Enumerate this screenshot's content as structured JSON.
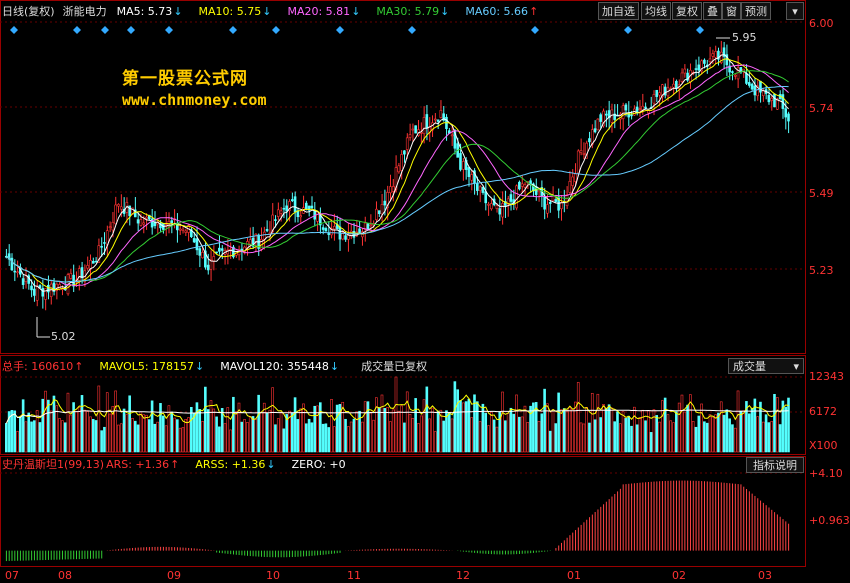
{
  "main_legend": {
    "period": "日线(复权)",
    "stock_name": "浙能电力",
    "ma5": "MA5: 5.73",
    "ma10": "MA10: 5.75",
    "ma20": "MA20: 5.81",
    "ma30": "MA30: 5.79",
    "ma60": "MA60: 5.66"
  },
  "toolbar": {
    "add_watch": "加自选",
    "ma_line": "均线",
    "adjust": "复权",
    "overlay": "叠",
    "window": "窗",
    "forecast": "预测",
    "menu_icon": "chevron-down-icon"
  },
  "watermark": {
    "line1": "第一股票公式网",
    "line2": "www.chnmoney.com"
  },
  "price_axis": [
    "6.00",
    "5.74",
    "5.49",
    "5.23"
  ],
  "price_marks": {
    "high": "5.95",
    "low": "5.02"
  },
  "volume_legend": {
    "total": "总手: 160610",
    "mavol5": "MAVOL5: 178157",
    "mavol120": "MAVOL120: 355448",
    "note": "成交量已复权",
    "dropdown": "成交量"
  },
  "volume_axis": [
    "12343",
    "6172",
    "X100"
  ],
  "indicator_legend": {
    "name": "史丹温斯坦1(99,13)",
    "ars": "ARS: +1.36",
    "arss": "ARSS: +1.36",
    "zero": "ZERO: +0",
    "help": "指标说明"
  },
  "indicator_axis": [
    "+4.10",
    "+0.963"
  ],
  "date_axis": [
    "07",
    "08",
    "09",
    "10",
    "11",
    "12",
    "01",
    "02",
    "03"
  ],
  "colors": {
    "up": "#ff3333",
    "down": "#55ffff",
    "ma5": "#ffffff",
    "ma10": "#ffff00",
    "ma20": "#ff66ff",
    "ma30": "#33cc33",
    "ma60": "#66ccff",
    "grid": "#990000",
    "ind_pos": "#ff4444",
    "ind_neg": "#33cc33"
  },
  "chart_data": {
    "type": "candlestick",
    "price_range": [
      5.02,
      6.0
    ],
    "anchors": [
      [
        0,
        5.27
      ],
      [
        10,
        5.16
      ],
      [
        25,
        5.2
      ],
      [
        33,
        5.28
      ],
      [
        40,
        5.44
      ],
      [
        48,
        5.38
      ],
      [
        55,
        5.38
      ],
      [
        65,
        5.35
      ],
      [
        72,
        5.24
      ],
      [
        80,
        5.29
      ],
      [
        90,
        5.32
      ],
      [
        100,
        5.43
      ],
      [
        110,
        5.4
      ],
      [
        118,
        5.34
      ],
      [
        128,
        5.36
      ],
      [
        135,
        5.45
      ],
      [
        145,
        5.66
      ],
      [
        155,
        5.72
      ],
      [
        162,
        5.56
      ],
      [
        170,
        5.45
      ],
      [
        176,
        5.4
      ],
      [
        185,
        5.5
      ],
      [
        192,
        5.44
      ],
      [
        198,
        5.43
      ],
      [
        205,
        5.6
      ],
      [
        212,
        5.7
      ],
      [
        220,
        5.72
      ],
      [
        228,
        5.74
      ],
      [
        236,
        5.8
      ],
      [
        246,
        5.86
      ],
      [
        254,
        5.89
      ],
      [
        262,
        5.84
      ],
      [
        268,
        5.78
      ],
      [
        275,
        5.75
      ],
      [
        279,
        5.7
      ]
    ],
    "bars": 280,
    "volume_range": [
      0,
      12343
    ],
    "indicator_range": [
      -0.6,
      4.1
    ]
  }
}
